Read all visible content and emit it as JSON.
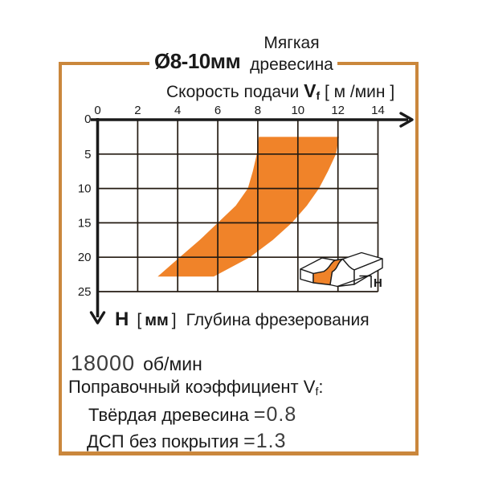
{
  "colors": {
    "accent": "#f08329",
    "border": "#ca873c",
    "text": "#1a1a1a"
  },
  "header": {
    "diameter_label": "Ø8-10мм",
    "material_lines": [
      "Мягкая",
      "древесина"
    ],
    "feed_label": "Скорость подачи",
    "feed_symbol": "V",
    "feed_symbol_sub": "f",
    "feed_units": "[ м /мин ]"
  },
  "chart_data": {
    "type": "area",
    "title": "Ø8-10мм, Мягкая древесина: скорость подачи vs глубина фрезерования",
    "xlabel": "Скорость подачи Vf [м/мин]",
    "ylabel": "H [мм] Глубина фрезерования",
    "xlim": [
      0,
      14
    ],
    "ylim": [
      0,
      25
    ],
    "x_ticks": [
      0,
      2,
      4,
      6,
      8,
      10,
      12,
      14
    ],
    "y_ticks": [
      0,
      5,
      10,
      15,
      20,
      25
    ],
    "grid": true,
    "y_axis_direction": "down",
    "band": {
      "description": "recommended feed-speed band (orange area), x = Vf [м/мин], y = H [мм]",
      "color": "#f08329",
      "left_edge": [
        [
          8.05,
          2.5
        ],
        [
          7.95,
          5
        ],
        [
          7.75,
          7.5
        ],
        [
          7.5,
          10
        ],
        [
          6.9,
          12.5
        ],
        [
          6.0,
          15
        ],
        [
          5.1,
          17.5
        ],
        [
          4.1,
          20
        ],
        [
          3.0,
          22.8
        ]
      ],
      "right_edge": [
        [
          12.05,
          2.5
        ],
        [
          11.9,
          5
        ],
        [
          11.5,
          7.5
        ],
        [
          11.05,
          10
        ],
        [
          10.45,
          12.5
        ],
        [
          9.7,
          15
        ],
        [
          8.75,
          17.5
        ],
        [
          7.6,
          20
        ],
        [
          5.8,
          22.8
        ]
      ]
    }
  },
  "depth_axis": {
    "symbol": "H",
    "bracket_open": "[",
    "units_text": "мм",
    "bracket_close": "]",
    "label": "Глубина фрезерования"
  },
  "icon": {
    "label": "H"
  },
  "footer": {
    "rpm_value": "18000",
    "rpm_units": "об/мин",
    "coeff_label": "Поправочный коэффициент",
    "coeff_symbol": "V",
    "coeff_symbol_sub": "f",
    "coeff_colon": ":",
    "rows": [
      {
        "label": "Твёрдая древесина",
        "value": "=0.8"
      },
      {
        "label": "ДСП без покрытия",
        "value": "=1.3"
      }
    ]
  }
}
